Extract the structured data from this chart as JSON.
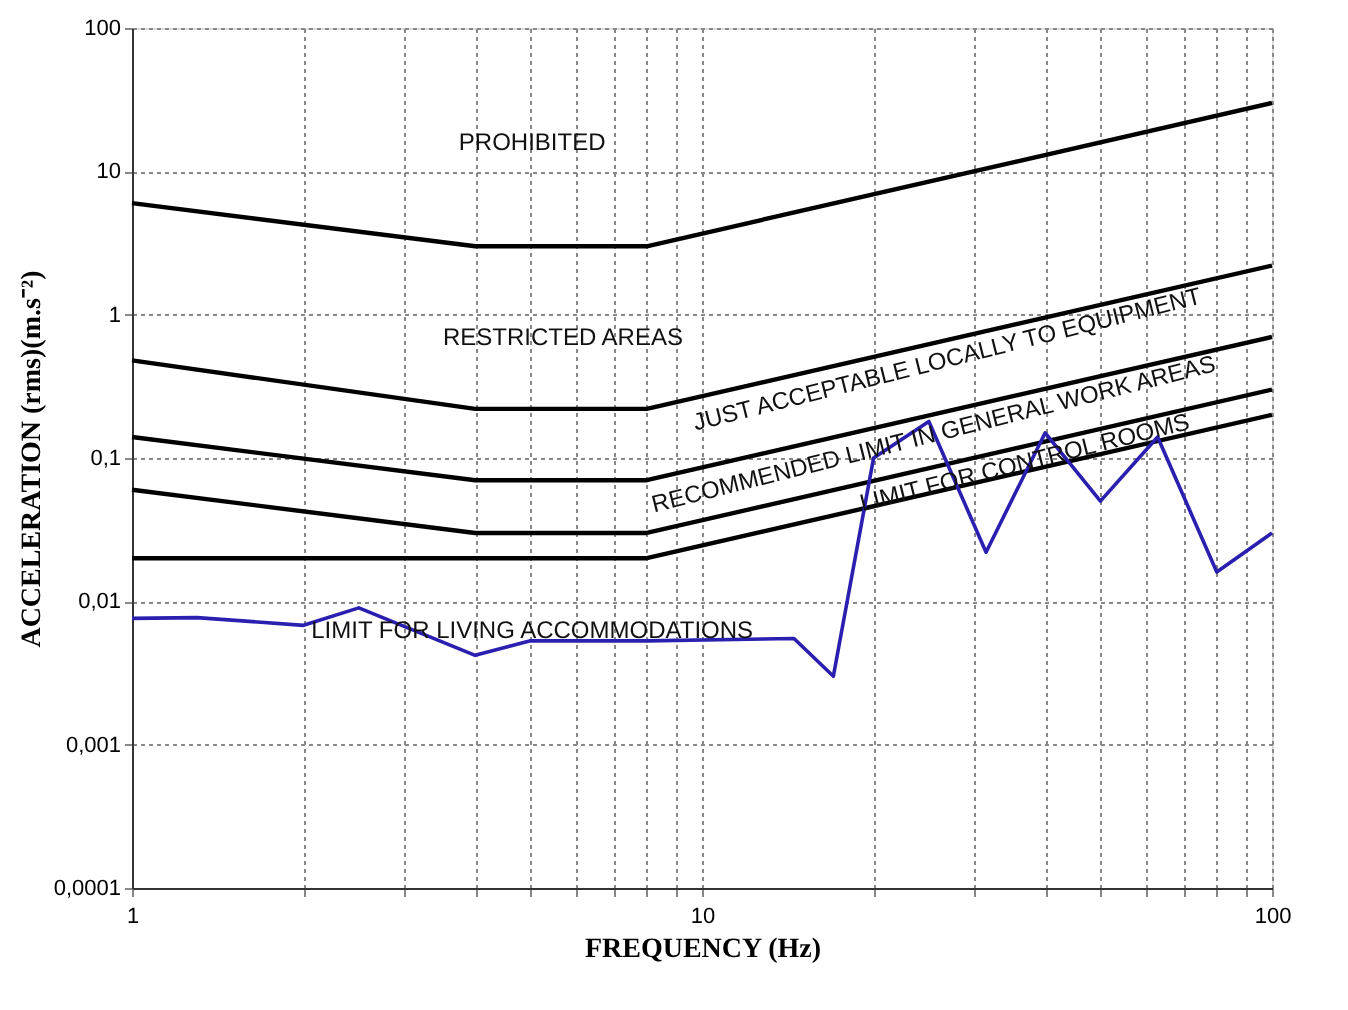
{
  "chart_data": {
    "type": "line",
    "xlabel": "FREQUENCY (Hz)",
    "ylabel": "ACCELERATION (rms)(m.s⁻²)",
    "log": "xy",
    "grid": true,
    "marker": "none",
    "line_style": "solid",
    "xlim": [
      1,
      100
    ],
    "ylim": [
      0.0001,
      100
    ],
    "xticks": [
      1,
      {
        "value": 2,
        "label": null
      },
      {
        "value": 3,
        "label": null
      },
      {
        "value": 4,
        "label": null
      },
      {
        "value": 5,
        "label": null
      },
      {
        "value": 6,
        "label": null
      },
      {
        "value": 7,
        "label": null
      },
      {
        "value": 8,
        "label": null
      },
      {
        "value": 9,
        "label": null
      },
      10,
      {
        "value": 20,
        "label": null
      },
      {
        "value": 30,
        "label": null
      },
      {
        "value": 40,
        "label": null
      },
      {
        "value": 50,
        "label": null
      },
      {
        "value": 60,
        "label": null
      },
      {
        "value": 70,
        "label": null
      },
      {
        "value": 80,
        "label": null
      },
      {
        "value": 90,
        "label": null
      },
      100
    ],
    "yticks": [
      {
        "value": 0.0001,
        "label": "0,0001"
      },
      {
        "value": 0.001,
        "label": "0,001"
      },
      {
        "value": 0.01,
        "label": "0,01"
      },
      {
        "value": 0.1,
        "label": "0,1"
      },
      1,
      10,
      100
    ],
    "series": [
      {
        "color": "#000000",
        "x": [
          1,
          4,
          8,
          100
        ],
        "values": [
          6,
          3,
          3,
          30
        ]
      },
      {
        "color": "#000000",
        "x": [
          1,
          4,
          8,
          100
        ],
        "values": [
          0.48,
          0.22,
          0.22,
          2.2
        ]
      },
      {
        "color": "#000000",
        "x": [
          1,
          4,
          8,
          100
        ],
        "values": [
          0.14,
          0.07,
          0.07,
          0.7
        ]
      },
      {
        "color": "#000000",
        "x": [
          1,
          4,
          8,
          100
        ],
        "values": [
          0.06,
          0.03,
          0.03,
          0.3
        ]
      },
      {
        "color": "#000000",
        "x": [
          1,
          8,
          100
        ],
        "values": [
          0.02,
          0.02,
          0.2
        ]
      },
      {
        "color": "#2b1fb0",
        "x": [
          1,
          1.3,
          2,
          2.5,
          4,
          5,
          8,
          14.5,
          17,
          20,
          25,
          31.5,
          40,
          50,
          63,
          80,
          100
        ],
        "values": [
          0.0076,
          0.0077,
          0.0068,
          0.009,
          0.0042,
          0.0053,
          0.0053,
          0.0055,
          0.003,
          0.1,
          0.18,
          0.022,
          0.15,
          0.05,
          0.14,
          0.016,
          0.03
        ]
      }
    ],
    "annotations": [
      "PROHIBITED",
      "RESTRICTED AREAS",
      "JUST ACCEPTABLE LOCALLY TO EQUIPMENT",
      "RECOMMENDED LIMIT IN GENERAL WORK AREAS",
      "LIMIT FOR CONTROL ROOMS",
      "LIMIT FOR LIVING ACCOMMODATIONS"
    ]
  }
}
